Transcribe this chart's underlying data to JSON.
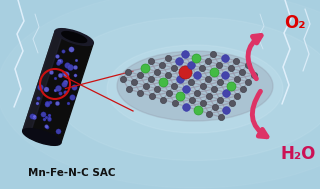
{
  "bg_color": "#a8cfe0",
  "bg_light": "#c5e0ee",
  "tube_body_color": "#0d0d0d",
  "tube_edge_color": "#1a1a2a",
  "tube_ring_color": "#222230",
  "tube_dots_color": "#4444bb",
  "tube_dots_color2": "#6666dd",
  "sheet_carbon_color": "#555560",
  "sheet_carbon_dark": "#3a3a44",
  "sheet_nitrogen_color": "#4444aa",
  "sheet_nitrogen_dark": "#5555cc",
  "sheet_iron_color": "#cc2020",
  "sheet_mn_color": "#44bb44",
  "sheet_bond_color": "#9999aa",
  "sheet_edge_bond": "#aaaabc",
  "arrow_color": "#dd3366",
  "arrow_lw": 3.5,
  "o2_color": "#dd0000",
  "h2o_color": "#cc1155",
  "label_color": "#111111",
  "label_text": "Mn-Fe-N-C SAC",
  "o2_text": "O₂",
  "h2o_text": "H₂O",
  "lightning_color": "#e8f4ff",
  "circle_color": "#cc1111",
  "line_color": "#cc1111"
}
